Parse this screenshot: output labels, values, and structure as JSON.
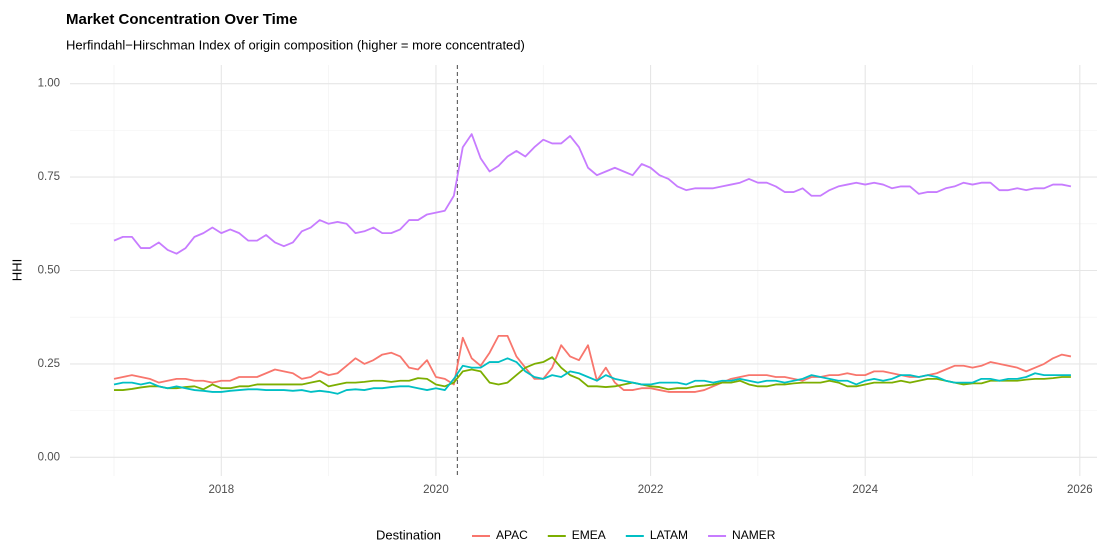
{
  "chart_data": {
    "type": "line",
    "title": "Market Concentration Over Time",
    "subtitle": "Herfindahl−Hirschman Index of origin composition (higher = more concentrated)",
    "y_label": "HHI",
    "legend_title": "Destination",
    "legend_position": "bottom",
    "grid": true,
    "xlim": [
      2016.59,
      2026.16
    ],
    "ylim": [
      -0.05,
      1.05
    ],
    "xticks": [
      2018,
      2020,
      2022,
      2024,
      2026
    ],
    "xminor": [
      2017,
      2019,
      2021,
      2023,
      2025
    ],
    "yticks": [
      {
        "value": 0,
        "label": "0.00"
      },
      {
        "value": 0.25,
        "label": "0.25"
      },
      {
        "value": 0.5,
        "label": "0.50"
      },
      {
        "value": 0.75,
        "label": "0.75"
      },
      {
        "value": 1,
        "label": "1.00"
      }
    ],
    "yminor": [
      0.125,
      0.375,
      0.625,
      0.875
    ],
    "vline": 2020.2,
    "x": [
      2017.0,
      2017.083,
      2017.167,
      2017.25,
      2017.333,
      2017.417,
      2017.5,
      2017.583,
      2017.667,
      2017.75,
      2017.833,
      2017.917,
      2018.0,
      2018.083,
      2018.167,
      2018.25,
      2018.333,
      2018.417,
      2018.5,
      2018.583,
      2018.667,
      2018.75,
      2018.833,
      2018.917,
      2019.0,
      2019.083,
      2019.167,
      2019.25,
      2019.333,
      2019.417,
      2019.5,
      2019.583,
      2019.667,
      2019.75,
      2019.833,
      2019.917,
      2020.0,
      2020.083,
      2020.167,
      2020.25,
      2020.333,
      2020.417,
      2020.5,
      2020.583,
      2020.667,
      2020.75,
      2020.833,
      2020.917,
      2021.0,
      2021.083,
      2021.167,
      2021.25,
      2021.333,
      2021.417,
      2021.5,
      2021.583,
      2021.667,
      2021.75,
      2021.833,
      2021.917,
      2022.0,
      2022.083,
      2022.167,
      2022.25,
      2022.333,
      2022.417,
      2022.5,
      2022.583,
      2022.667,
      2022.75,
      2022.833,
      2022.917,
      2023.0,
      2023.083,
      2023.167,
      2023.25,
      2023.333,
      2023.417,
      2023.5,
      2023.583,
      2023.667,
      2023.75,
      2023.833,
      2023.917,
      2024.0,
      2024.083,
      2024.167,
      2024.25,
      2024.333,
      2024.417,
      2024.5,
      2024.583,
      2024.667,
      2024.75,
      2024.833,
      2024.917,
      2025.0,
      2025.083,
      2025.167,
      2025.25,
      2025.333,
      2025.417,
      2025.5,
      2025.583,
      2025.667,
      2025.75,
      2025.833,
      2025.917
    ],
    "series": [
      {
        "name": "APAC",
        "color": "#F8766D",
        "values": [
          0.21,
          0.215,
          0.22,
          0.215,
          0.21,
          0.2,
          0.205,
          0.21,
          0.21,
          0.205,
          0.205,
          0.2,
          0.205,
          0.205,
          0.215,
          0.215,
          0.215,
          0.225,
          0.235,
          0.23,
          0.225,
          0.21,
          0.215,
          0.23,
          0.22,
          0.225,
          0.245,
          0.265,
          0.25,
          0.26,
          0.275,
          0.28,
          0.27,
          0.24,
          0.235,
          0.26,
          0.215,
          0.21,
          0.195,
          0.32,
          0.265,
          0.245,
          0.28,
          0.325,
          0.325,
          0.27,
          0.24,
          0.21,
          0.21,
          0.24,
          0.3,
          0.27,
          0.26,
          0.3,
          0.205,
          0.24,
          0.2,
          0.18,
          0.18,
          0.185,
          0.185,
          0.18,
          0.175,
          0.175,
          0.175,
          0.175,
          0.18,
          0.19,
          0.2,
          0.21,
          0.215,
          0.22,
          0.22,
          0.22,
          0.215,
          0.215,
          0.21,
          0.205,
          0.215,
          0.215,
          0.22,
          0.22,
          0.225,
          0.22,
          0.22,
          0.23,
          0.23,
          0.225,
          0.22,
          0.215,
          0.215,
          0.22,
          0.225,
          0.235,
          0.245,
          0.245,
          0.24,
          0.245,
          0.255,
          0.25,
          0.245,
          0.24,
          0.23,
          0.24,
          0.25,
          0.265,
          0.275,
          0.27
        ]
      },
      {
        "name": "EMEA",
        "color": "#7CAE00",
        "values": [
          0.18,
          0.18,
          0.183,
          0.187,
          0.19,
          0.19,
          0.185,
          0.185,
          0.188,
          0.19,
          0.182,
          0.195,
          0.185,
          0.185,
          0.19,
          0.19,
          0.195,
          0.195,
          0.195,
          0.195,
          0.195,
          0.195,
          0.2,
          0.205,
          0.19,
          0.195,
          0.2,
          0.2,
          0.202,
          0.205,
          0.205,
          0.202,
          0.205,
          0.205,
          0.212,
          0.21,
          0.195,
          0.19,
          0.2,
          0.23,
          0.235,
          0.23,
          0.2,
          0.195,
          0.2,
          0.22,
          0.24,
          0.25,
          0.255,
          0.268,
          0.24,
          0.22,
          0.21,
          0.19,
          0.19,
          0.188,
          0.19,
          0.195,
          0.2,
          0.195,
          0.19,
          0.188,
          0.182,
          0.185,
          0.185,
          0.19,
          0.192,
          0.195,
          0.2,
          0.2,
          0.205,
          0.195,
          0.19,
          0.19,
          0.195,
          0.195,
          0.198,
          0.2,
          0.2,
          0.2,
          0.205,
          0.2,
          0.19,
          0.19,
          0.195,
          0.2,
          0.2,
          0.2,
          0.205,
          0.2,
          0.205,
          0.21,
          0.21,
          0.205,
          0.2,
          0.195,
          0.198,
          0.198,
          0.205,
          0.205,
          0.205,
          0.205,
          0.208,
          0.21,
          0.21,
          0.212,
          0.215,
          0.215
        ]
      },
      {
        "name": "LATAM",
        "color": "#00BFC4",
        "values": [
          0.195,
          0.2,
          0.2,
          0.195,
          0.2,
          0.19,
          0.185,
          0.19,
          0.185,
          0.18,
          0.178,
          0.175,
          0.175,
          0.178,
          0.18,
          0.182,
          0.182,
          0.18,
          0.18,
          0.18,
          0.178,
          0.18,
          0.175,
          0.178,
          0.175,
          0.17,
          0.18,
          0.182,
          0.18,
          0.185,
          0.185,
          0.188,
          0.19,
          0.19,
          0.185,
          0.18,
          0.185,
          0.18,
          0.21,
          0.245,
          0.24,
          0.24,
          0.255,
          0.255,
          0.265,
          0.255,
          0.23,
          0.215,
          0.21,
          0.22,
          0.215,
          0.23,
          0.225,
          0.215,
          0.205,
          0.22,
          0.21,
          0.205,
          0.2,
          0.195,
          0.195,
          0.2,
          0.2,
          0.2,
          0.195,
          0.205,
          0.205,
          0.2,
          0.205,
          0.205,
          0.21,
          0.205,
          0.2,
          0.205,
          0.205,
          0.2,
          0.205,
          0.21,
          0.22,
          0.215,
          0.21,
          0.205,
          0.205,
          0.195,
          0.205,
          0.21,
          0.205,
          0.21,
          0.22,
          0.22,
          0.215,
          0.22,
          0.215,
          0.205,
          0.2,
          0.2,
          0.2,
          0.21,
          0.21,
          0.205,
          0.21,
          0.21,
          0.215,
          0.225,
          0.22,
          0.22,
          0.22,
          0.22
        ]
      },
      {
        "name": "NAMER",
        "color": "#C77CFF",
        "values": [
          0.58,
          0.59,
          0.59,
          0.56,
          0.56,
          0.575,
          0.555,
          0.545,
          0.56,
          0.59,
          0.6,
          0.615,
          0.6,
          0.61,
          0.6,
          0.58,
          0.58,
          0.595,
          0.575,
          0.565,
          0.575,
          0.605,
          0.615,
          0.635,
          0.625,
          0.63,
          0.625,
          0.6,
          0.605,
          0.615,
          0.6,
          0.6,
          0.61,
          0.635,
          0.635,
          0.65,
          0.655,
          0.66,
          0.7,
          0.83,
          0.865,
          0.8,
          0.765,
          0.78,
          0.805,
          0.82,
          0.805,
          0.83,
          0.85,
          0.84,
          0.84,
          0.86,
          0.83,
          0.775,
          0.755,
          0.765,
          0.775,
          0.765,
          0.755,
          0.785,
          0.775,
          0.755,
          0.745,
          0.725,
          0.715,
          0.72,
          0.72,
          0.72,
          0.725,
          0.73,
          0.735,
          0.745,
          0.735,
          0.735,
          0.725,
          0.71,
          0.71,
          0.72,
          0.7,
          0.7,
          0.715,
          0.725,
          0.73,
          0.735,
          0.73,
          0.735,
          0.73,
          0.72,
          0.725,
          0.725,
          0.705,
          0.71,
          0.71,
          0.72,
          0.725,
          0.735,
          0.73,
          0.735,
          0.735,
          0.715,
          0.715,
          0.72,
          0.715,
          0.72,
          0.72,
          0.73,
          0.73,
          0.725
        ]
      }
    ]
  }
}
